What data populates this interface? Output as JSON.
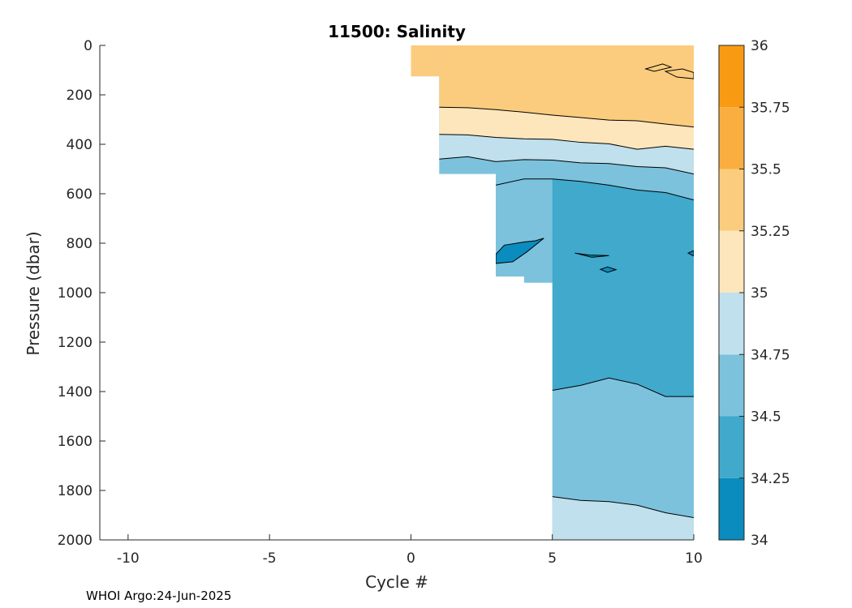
{
  "chart_data": {
    "type": "heatmap",
    "subtype": "filled-contour",
    "title": "11500:  Salinity",
    "xlabel": "Cycle #",
    "ylabel": "Pressure (dbar)",
    "xlim": [
      -11,
      10
    ],
    "ylim": [
      0,
      2000
    ],
    "y_reversed": true,
    "x_ticks": [
      -10,
      -5,
      0,
      5,
      10
    ],
    "y_ticks": [
      0,
      200,
      400,
      600,
      800,
      1000,
      1200,
      1400,
      1600,
      1800,
      2000
    ],
    "colorbar": {
      "levels": [
        34,
        34.25,
        34.5,
        34.75,
        35,
        35.25,
        35.5,
        35.75,
        36
      ],
      "tick_labels": [
        "34",
        "34.25",
        "34.5",
        "34.75",
        "35",
        "35.25",
        "35.5",
        "35.75",
        "36"
      ],
      "colors": [
        "#0a8cbf",
        "#40a9cc",
        "#7cc2dc",
        "#bfe0ec",
        "#fde6bb",
        "#fbcc7d",
        "#faae40",
        "#f99b12"
      ]
    },
    "coverage_bottom_dbar": [
      {
        "x": [
          0,
          1
        ],
        "bottom": 125
      },
      {
        "x": [
          1,
          3
        ],
        "bottom": 520
      },
      {
        "x": [
          3,
          4
        ],
        "bottom": 935
      },
      {
        "x": [
          4,
          5
        ],
        "bottom": 960
      },
      {
        "x": [
          5,
          10
        ],
        "bottom": 2000
      }
    ],
    "contours": [
      {
        "level": 35.25,
        "x": [
          1,
          2,
          3,
          4,
          5,
          6,
          7,
          8,
          9,
          10
        ],
        "p": [
          250,
          252,
          260,
          270,
          282,
          292,
          302,
          305,
          318,
          330
        ]
      },
      {
        "level": 35,
        "x": [
          1,
          2,
          3,
          4,
          5,
          6,
          7,
          8,
          9,
          10
        ],
        "p": [
          360,
          362,
          372,
          378,
          380,
          392,
          398,
          420,
          408,
          420
        ]
      },
      {
        "level": 34.75,
        "x": [
          1,
          2,
          3,
          4,
          5,
          6,
          7,
          8,
          9,
          10
        ],
        "p": [
          460,
          450,
          470,
          462,
          464,
          475,
          478,
          490,
          495,
          520
        ]
      },
      {
        "level": 34.5,
        "x": [
          3,
          4,
          5,
          6,
          7,
          8,
          9,
          10
        ],
        "p": [
          565,
          540,
          540,
          550,
          565,
          585,
          595,
          625
        ]
      },
      {
        "level": 34.25,
        "x": [
          5,
          6,
          7,
          8,
          9,
          10
        ],
        "p": [
          1395,
          1375,
          1345,
          1370,
          1420,
          1420
        ]
      },
      {
        "level": 34.5,
        "x": [
          5,
          6,
          7,
          8,
          9,
          10
        ],
        "p": [
          1825,
          1840,
          1845,
          1860,
          1890,
          1910
        ]
      }
    ],
    "closed_contours": [
      {
        "level": 35.5,
        "x": [
          8.3,
          8.9,
          9.2,
          8.6,
          8.3
        ],
        "p": [
          95,
          75,
          88,
          105,
          95
        ]
      },
      {
        "level": 35.5,
        "x": [
          9.0,
          9.6,
          10,
          10,
          9.4,
          9.0
        ],
        "p": [
          105,
          95,
          110,
          135,
          128,
          105
        ]
      },
      {
        "level": 34.25,
        "x": [
          3,
          3.3,
          4.0,
          4.4,
          4.7,
          4.1,
          3.6,
          3,
          3
        ],
        "p": [
          845,
          808,
          795,
          790,
          780,
          835,
          875,
          882,
          845
        ]
      },
      {
        "level": 34.25,
        "x": [
          5.8,
          6.3,
          7.0,
          6.4,
          5.8
        ],
        "p": [
          840,
          848,
          850,
          857,
          840
        ]
      },
      {
        "level": 34.25,
        "x": [
          6.7,
          6.95,
          7.25,
          6.95,
          6.7
        ],
        "p": [
          906,
          896,
          907,
          918,
          906
        ]
      },
      {
        "level": 34.25,
        "x": [
          9.8,
          10,
          10,
          9.8
        ],
        "p": [
          840,
          830,
          852,
          840
        ]
      }
    ],
    "footer": "WHOI Argo:24-Jun-2025"
  }
}
